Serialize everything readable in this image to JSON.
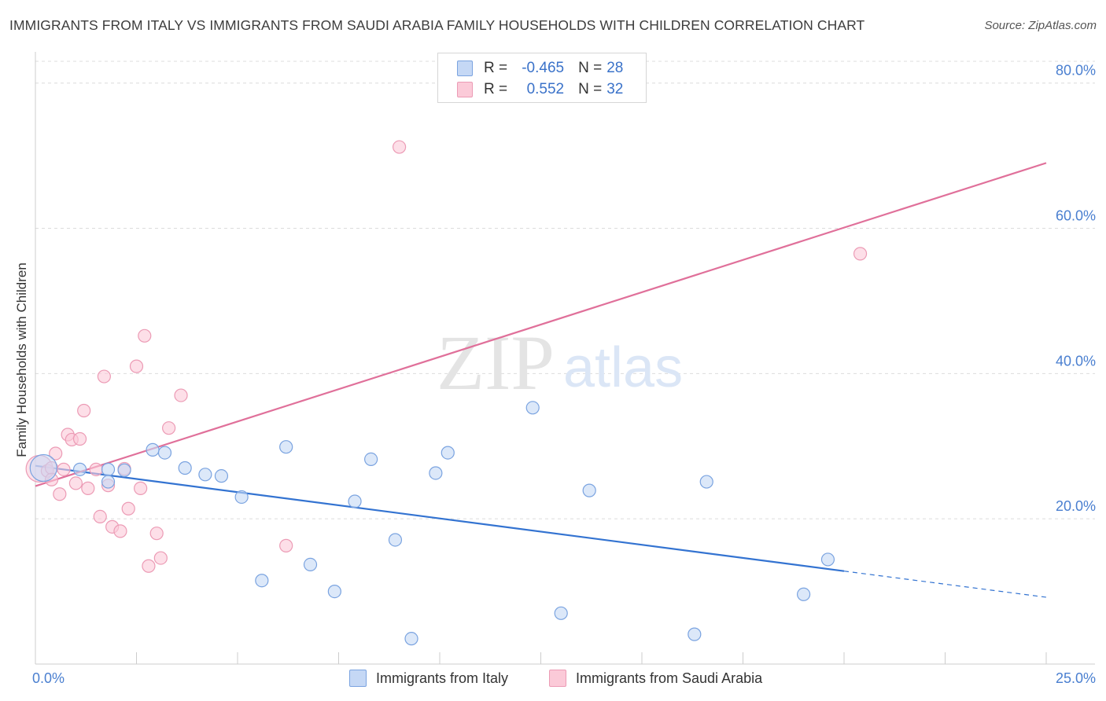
{
  "header": {
    "title": "IMMIGRANTS FROM ITALY VS IMMIGRANTS FROM SAUDI ARABIA FAMILY HOUSEHOLDS WITH CHILDREN CORRELATION CHART",
    "source": "Source: ZipAtlas.com"
  },
  "watermark": {
    "zip": "ZIP",
    "atlas": "atlas"
  },
  "legend": {
    "rows": [
      {
        "r_label": "R =",
        "r_value": "-0.465",
        "n_label": "N =",
        "n_value": "28"
      },
      {
        "r_label": "R =",
        "r_value": "0.552",
        "n_label": "N =",
        "n_value": "32"
      }
    ]
  },
  "bottom_legend": {
    "italy": "Immigrants from Italy",
    "saudi": "Immigrants from Saudi Arabia"
  },
  "colors": {
    "italy_fill": "#c5d8f5",
    "italy_stroke": "#7aa3e0",
    "italy_line": "#3373d1",
    "saudi_fill": "#fbcad8",
    "saudi_stroke": "#ec9bb5",
    "saudi_line": "#e0709a",
    "grid": "#dcdcdc",
    "tick_text": "#4a7fd0"
  },
  "chart_data": {
    "type": "scatter",
    "title": "IMMIGRANTS FROM ITALY VS IMMIGRANTS FROM SAUDI ARABIA FAMILY HOUSEHOLDS WITH CHILDREN CORRELATION CHART",
    "xlabel": "",
    "ylabel": "Family Households with Children",
    "xlim": [
      0,
      25
    ],
    "ylim": [
      0,
      83
    ],
    "x_tick_labels": {
      "min": "0.0%",
      "max": "25.0%"
    },
    "y_ticks": [
      {
        "value": 20,
        "label": "20.0%"
      },
      {
        "value": 40,
        "label": "40.0%"
      },
      {
        "value": 60,
        "label": "60.0%"
      },
      {
        "value": 80,
        "label": "80.0%"
      }
    ],
    "series": [
      {
        "name": "Immigrants from Italy",
        "r": -0.465,
        "n": 28,
        "trend": {
          "x0": 0,
          "y0": 27.3,
          "x1": 20,
          "y1": 12.8,
          "dash_to_x": 25,
          "dash_to_y": 9.2
        },
        "points": [
          {
            "x": 0.2,
            "y": 27.0,
            "big": true
          },
          {
            "x": 1.1,
            "y": 26.8
          },
          {
            "x": 1.8,
            "y": 26.8
          },
          {
            "x": 1.8,
            "y": 25.1
          },
          {
            "x": 2.2,
            "y": 26.7
          },
          {
            "x": 2.9,
            "y": 29.5
          },
          {
            "x": 3.2,
            "y": 29.1
          },
          {
            "x": 3.7,
            "y": 27.0
          },
          {
            "x": 4.2,
            "y": 26.1
          },
          {
            "x": 4.6,
            "y": 25.9
          },
          {
            "x": 5.1,
            "y": 23.0
          },
          {
            "x": 5.6,
            "y": 11.5
          },
          {
            "x": 6.2,
            "y": 29.9
          },
          {
            "x": 6.8,
            "y": 13.7
          },
          {
            "x": 7.4,
            "y": 10.0
          },
          {
            "x": 7.9,
            "y": 22.4
          },
          {
            "x": 8.3,
            "y": 28.2
          },
          {
            "x": 8.9,
            "y": 17.1
          },
          {
            "x": 9.3,
            "y": 3.5
          },
          {
            "x": 9.9,
            "y": 26.3
          },
          {
            "x": 10.2,
            "y": 29.1
          },
          {
            "x": 12.3,
            "y": 35.3
          },
          {
            "x": 13.0,
            "y": 7.0
          },
          {
            "x": 13.7,
            "y": 23.9
          },
          {
            "x": 16.3,
            "y": 4.1
          },
          {
            "x": 16.6,
            "y": 25.1
          },
          {
            "x": 19.0,
            "y": 9.6
          },
          {
            "x": 19.6,
            "y": 14.4
          }
        ]
      },
      {
        "name": "Immigrants from Saudi Arabia",
        "r": 0.552,
        "n": 32,
        "trend": {
          "x0": 0,
          "y0": 24.5,
          "x1": 25,
          "y1": 69.0
        },
        "points": [
          {
            "x": 0.1,
            "y": 26.9,
            "big": true
          },
          {
            "x": 0.3,
            "y": 26.6
          },
          {
            "x": 0.4,
            "y": 27.0
          },
          {
            "x": 0.4,
            "y": 25.4
          },
          {
            "x": 0.5,
            "y": 29.0
          },
          {
            "x": 0.6,
            "y": 23.4
          },
          {
            "x": 0.7,
            "y": 26.8
          },
          {
            "x": 0.8,
            "y": 31.6
          },
          {
            "x": 0.9,
            "y": 30.9
          },
          {
            "x": 1.0,
            "y": 24.9
          },
          {
            "x": 1.1,
            "y": 31.0
          },
          {
            "x": 1.2,
            "y": 34.9
          },
          {
            "x": 1.3,
            "y": 24.2
          },
          {
            "x": 1.5,
            "y": 26.8
          },
          {
            "x": 1.6,
            "y": 20.3
          },
          {
            "x": 1.7,
            "y": 39.6
          },
          {
            "x": 1.8,
            "y": 24.6
          },
          {
            "x": 1.9,
            "y": 18.9
          },
          {
            "x": 2.1,
            "y": 18.3
          },
          {
            "x": 2.2,
            "y": 26.9
          },
          {
            "x": 2.3,
            "y": 21.4
          },
          {
            "x": 2.5,
            "y": 41.0
          },
          {
            "x": 2.6,
            "y": 24.2
          },
          {
            "x": 2.7,
            "y": 45.2
          },
          {
            "x": 2.8,
            "y": 13.5
          },
          {
            "x": 3.0,
            "y": 18.0
          },
          {
            "x": 3.1,
            "y": 14.6
          },
          {
            "x": 3.3,
            "y": 32.5
          },
          {
            "x": 3.6,
            "y": 37.0
          },
          {
            "x": 6.2,
            "y": 16.3
          },
          {
            "x": 9.0,
            "y": 71.2
          },
          {
            "x": 20.4,
            "y": 56.5
          }
        ]
      }
    ]
  }
}
